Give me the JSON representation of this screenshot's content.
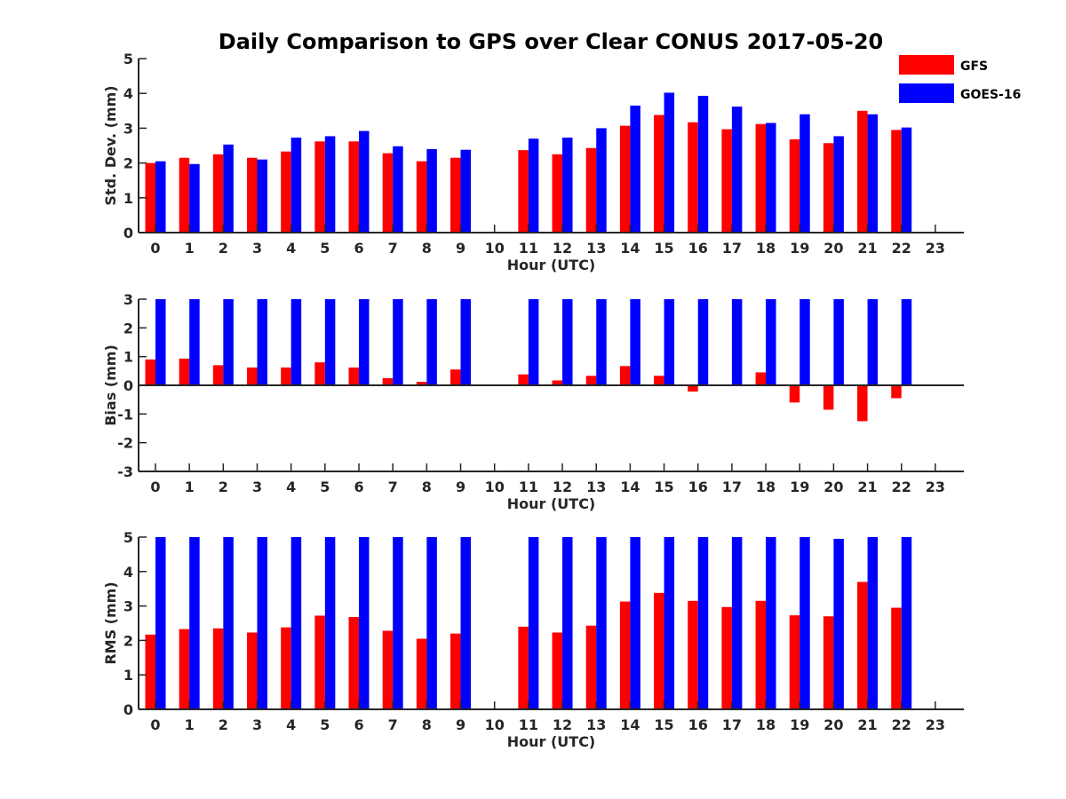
{
  "chart_data": {
    "type": "bar",
    "title": "Daily Comparison to GPS over Clear CONUS 2017-05-20",
    "legend": {
      "placement": "top-right",
      "entries": [
        {
          "name": "GFS",
          "color": "#ff0000"
        },
        {
          "name": "GOES-16",
          "color": "#0000ff"
        }
      ]
    },
    "x": [
      "0",
      "1",
      "2",
      "3",
      "4",
      "5",
      "6",
      "7",
      "8",
      "9",
      "10",
      "11",
      "12",
      "13",
      "14",
      "15",
      "16",
      "17",
      "18",
      "19",
      "20",
      "21",
      "22",
      "23"
    ],
    "grid": false,
    "panels": [
      {
        "ylabel": "Std. Dev. (mm)",
        "xlabel": "Hour (UTC)",
        "ylim": [
          0,
          5
        ],
        "yticks": [
          "0",
          "1",
          "2",
          "3",
          "4",
          "5"
        ],
        "series": [
          {
            "name": "GFS",
            "color": "#ff0000",
            "values": [
              2.0,
              2.15,
              2.25,
              2.15,
              2.33,
              2.62,
              2.62,
              2.28,
              2.05,
              2.15,
              null,
              2.37,
              2.25,
              2.43,
              3.07,
              3.38,
              3.17,
              2.97,
              3.12,
              2.68,
              2.57,
              3.5,
              2.95,
              null
            ]
          },
          {
            "name": "GOES-16",
            "color": "#0000ff",
            "values": [
              2.05,
              1.97,
              2.53,
              2.1,
              2.73,
              2.77,
              2.92,
              2.48,
              2.4,
              2.38,
              null,
              2.7,
              2.73,
              3.0,
              3.65,
              4.02,
              3.93,
              3.62,
              3.15,
              3.4,
              2.77,
              3.4,
              3.02,
              null
            ]
          }
        ]
      },
      {
        "ylabel": "Bias (mm)",
        "xlabel": "Hour (UTC)",
        "ylim": [
          -3,
          3
        ],
        "yticks": [
          "-3",
          "-2",
          "-1",
          "0",
          "1",
          "2",
          "3"
        ],
        "series": [
          {
            "name": "GFS",
            "color": "#ff0000",
            "values": [
              0.9,
              0.93,
              0.7,
              0.62,
              0.62,
              0.8,
              0.62,
              0.25,
              0.12,
              0.55,
              null,
              0.38,
              0.17,
              0.33,
              0.67,
              0.33,
              -0.22,
              null,
              0.45,
              -0.6,
              -0.85,
              -1.25,
              -0.45,
              null
            ]
          },
          {
            "name": "GOES-16",
            "color": "#0000ff",
            "values": [
              3,
              3,
              3,
              3,
              3,
              3,
              3,
              3,
              3,
              3,
              null,
              3,
              3,
              3,
              3,
              3,
              3,
              3,
              3,
              3,
              3,
              3,
              3,
              null
            ]
          }
        ]
      },
      {
        "ylabel": "RMS (mm)",
        "xlabel": "Hour (UTC)",
        "ylim": [
          0,
          5
        ],
        "yticks": [
          "0",
          "1",
          "2",
          "3",
          "4",
          "5"
        ],
        "series": [
          {
            "name": "GFS",
            "color": "#ff0000",
            "values": [
              2.17,
              2.33,
              2.35,
              2.23,
              2.38,
              2.72,
              2.68,
              2.28,
              2.05,
              2.2,
              null,
              2.4,
              2.23,
              2.43,
              3.13,
              3.38,
              3.15,
              2.97,
              3.15,
              2.73,
              2.7,
              3.7,
              2.95,
              null
            ]
          },
          {
            "name": "GOES-16",
            "color": "#0000ff",
            "values": [
              5,
              5,
              5,
              5,
              5,
              5,
              5,
              5,
              5,
              5,
              null,
              5,
              5,
              5,
              5,
              5,
              5,
              5,
              5,
              5,
              4.95,
              5,
              5,
              null
            ]
          }
        ]
      }
    ]
  }
}
